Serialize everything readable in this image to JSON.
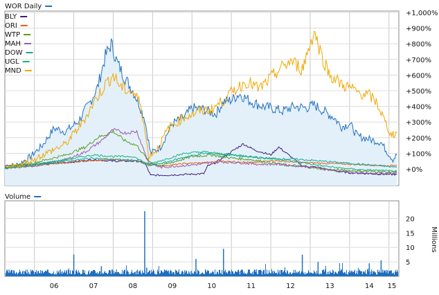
{
  "chart_data": [
    {
      "type": "line",
      "title": "WOR Daily",
      "x_ticks": [
        "06",
        "07",
        "08",
        "09",
        "10",
        "11",
        "12",
        "13",
        "14",
        "15"
      ],
      "y_ticks": [
        "+1,000%",
        "+900%",
        "+800%",
        "+700%",
        "+600%",
        "+500%",
        "+400%",
        "+300%",
        "+200%",
        "+100%",
        "+0%"
      ],
      "ylim": [
        -50,
        1000
      ],
      "xlim": [
        2005.25,
        2015.25
      ],
      "grid": true,
      "legend_position": "top-left",
      "area_series": "WOR Daily",
      "series": [
        {
          "name": "WOR Daily",
          "color": "#1f6fbf",
          "x": [
            2005.25,
            2005.6,
            2005.9,
            2006.2,
            2006.5,
            2006.8,
            2007.1,
            2007.4,
            2007.6,
            2007.8,
            2007.95,
            2008.1,
            2008.3,
            2008.5,
            2008.65,
            2008.8,
            2008.95,
            2009.2,
            2009.5,
            2009.8,
            2010.0,
            2010.3,
            2010.6,
            2010.8,
            2011.0,
            2011.2,
            2011.5,
            2011.8,
            2012.0,
            2012.3,
            2012.6,
            2012.9,
            2013.1,
            2013.4,
            2013.6,
            2013.8,
            2014.0,
            2014.2,
            2014.5,
            2014.8,
            2014.95,
            2015.1,
            2015.2
          ],
          "y": [
            10,
            30,
            80,
            150,
            260,
            240,
            300,
            420,
            520,
            720,
            800,
            680,
            580,
            500,
            420,
            320,
            100,
            140,
            290,
            330,
            390,
            380,
            350,
            430,
            440,
            480,
            430,
            400,
            390,
            370,
            400,
            390,
            410,
            360,
            330,
            270,
            290,
            210,
            190,
            170,
            110,
            60,
            90
          ]
        },
        {
          "name": "BLY",
          "color": "#3d1a78",
          "x": [
            2005.25,
            2006.0,
            2006.8,
            2007.5,
            2008.0,
            2008.6,
            2008.8,
            2008.95,
            2009.3,
            2009.8,
            2010.3,
            2010.4,
            2010.6,
            2011.0,
            2011.3,
            2011.6,
            2012.0,
            2012.2,
            2012.4,
            2012.8,
            2013.2,
            2013.6,
            2014.0,
            2014.5,
            2015.0,
            2015.2
          ],
          "y": [
            20,
            30,
            40,
            60,
            50,
            50,
            40,
            -40,
            -40,
            -35,
            -30,
            20,
            40,
            110,
            160,
            120,
            90,
            140,
            100,
            20,
            10,
            -10,
            -25,
            -30,
            -35,
            -35
          ]
        },
        {
          "name": "ORI",
          "color": "#e8620c",
          "x": [
            2005.25,
            2006.0,
            2006.8,
            2007.5,
            2008.0,
            2008.5,
            2008.9,
            2009.3,
            2009.8,
            2010.3,
            2010.8,
            2011.2,
            2011.6,
            2012.0,
            2012.5,
            2013.0,
            2013.5,
            2014.0,
            2014.5,
            2015.0,
            2015.2
          ],
          "y": [
            5,
            20,
            40,
            55,
            60,
            55,
            30,
            20,
            35,
            40,
            50,
            45,
            40,
            55,
            45,
            40,
            35,
            30,
            25,
            20,
            25
          ]
        },
        {
          "name": "WTP",
          "color": "#5a9a1a",
          "x": [
            2005.25,
            2006.0,
            2006.8,
            2007.3,
            2007.6,
            2008.0,
            2008.3,
            2008.6,
            2008.9,
            2009.2,
            2009.6,
            2010.0,
            2010.5,
            2011.0,
            2011.5,
            2012.0,
            2012.5,
            2013.0,
            2013.5,
            2014.0,
            2014.5,
            2015.0,
            2015.2
          ],
          "y": [
            10,
            40,
            90,
            140,
            200,
            240,
            180,
            150,
            50,
            20,
            50,
            80,
            90,
            70,
            60,
            40,
            20,
            10,
            -5,
            -10,
            -15,
            -20,
            -15
          ]
        },
        {
          "name": "MAH",
          "color": "#9a5aa8",
          "x": [
            2005.25,
            2006.0,
            2006.8,
            2007.3,
            2007.7,
            2008.0,
            2008.3,
            2008.6,
            2008.9,
            2009.2,
            2009.7,
            2010.2,
            2010.7,
            2011.2,
            2011.7,
            2012.2,
            2012.7,
            2013.2,
            2013.7,
            2014.2,
            2014.7,
            2015.2
          ],
          "y": [
            5,
            20,
            60,
            110,
            180,
            250,
            230,
            240,
            40,
            10,
            20,
            30,
            45,
            40,
            30,
            30,
            20,
            5,
            -15,
            -25,
            -30,
            -25
          ]
        },
        {
          "name": "DOW",
          "color": "#14a6a0",
          "x": [
            2005.25,
            2006.0,
            2006.8,
            2007.5,
            2008.0,
            2008.6,
            2008.9,
            2009.3,
            2009.8,
            2010.3,
            2010.8,
            2011.3,
            2011.8,
            2012.3,
            2012.8,
            2013.3,
            2013.8,
            2014.3,
            2014.8,
            2015.2
          ],
          "y": [
            5,
            25,
            50,
            70,
            60,
            55,
            20,
            40,
            75,
            100,
            95,
            80,
            70,
            65,
            60,
            50,
            40,
            30,
            20,
            10
          ]
        },
        {
          "name": "UGL",
          "color": "#18b07a",
          "x": [
            2005.25,
            2006.0,
            2006.8,
            2007.5,
            2008.0,
            2008.5,
            2008.9,
            2009.3,
            2009.8,
            2010.3,
            2010.8,
            2011.3,
            2011.8,
            2012.3,
            2012.8,
            2013.3,
            2013.8,
            2014.3,
            2014.8,
            2015.2
          ],
          "y": [
            5,
            30,
            60,
            90,
            80,
            80,
            30,
            60,
            100,
            110,
            95,
            85,
            70,
            60,
            40,
            20,
            5,
            -5,
            -10,
            -15
          ]
        },
        {
          "name": "MND",
          "color": "#f0a800",
          "x": [
            2005.25,
            2005.8,
            2006.3,
            2006.8,
            2007.2,
            2007.5,
            2007.8,
            2008.0,
            2008.2,
            2008.5,
            2008.7,
            2008.9,
            2009.1,
            2009.4,
            2009.8,
            2010.2,
            2010.5,
            2010.8,
            2011.1,
            2011.4,
            2011.7,
            2012.0,
            2012.2,
            2012.5,
            2012.8,
            2013.0,
            2013.1,
            2013.3,
            2013.5,
            2013.8,
            2014.0,
            2014.2,
            2014.5,
            2014.7,
            2014.9,
            2015.05,
            2015.2
          ],
          "y": [
            0,
            40,
            100,
            160,
            290,
            420,
            540,
            600,
            520,
            490,
            420,
            80,
            120,
            260,
            330,
            370,
            380,
            440,
            510,
            560,
            510,
            580,
            630,
            690,
            640,
            800,
            880,
            720,
            600,
            540,
            520,
            490,
            470,
            420,
            300,
            220,
            230
          ]
        }
      ]
    },
    {
      "type": "bar",
      "title": "Volume",
      "ylabel": "Millions",
      "y_ticks": [
        "20",
        "15",
        "10",
        "5"
      ],
      "ylim": [
        0,
        25
      ],
      "color": "#1f6fbf",
      "spikes": [
        {
          "x": 2007.0,
          "value": 7.5
        },
        {
          "x": 2007.7,
          "value": 3.5
        },
        {
          "x": 2008.8,
          "value": 22.5
        },
        {
          "x": 2008.85,
          "value": 3
        },
        {
          "x": 2010.1,
          "value": 6
        },
        {
          "x": 2010.8,
          "value": 9.5
        },
        {
          "x": 2012.8,
          "value": 7.5
        },
        {
          "x": 2013.2,
          "value": 5
        },
        {
          "x": 2014.5,
          "value": 4.5
        },
        {
          "x": 2014.8,
          "value": 5.5
        }
      ],
      "base_volume": 1.5
    }
  ]
}
